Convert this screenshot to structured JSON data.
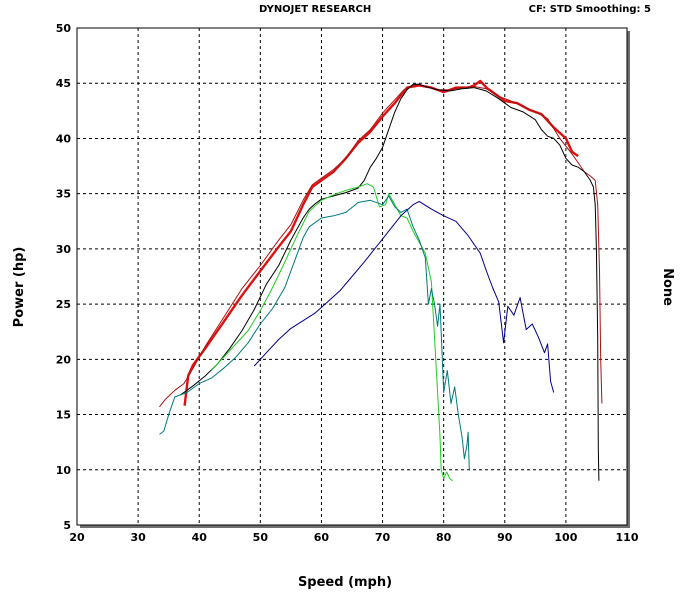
{
  "header": {
    "title": "DYNOJET RESEARCH",
    "right": "CF: STD  Smoothing: 5"
  },
  "colors": {
    "plot_bg": "#ffffff",
    "grid": "#000000",
    "red_run": "#dd1111",
    "dark_red_run": "#aa1111",
    "black_run": "#000000",
    "green_run": "#22cc22",
    "teal_run": "#007a7a",
    "navy_run": "#000088"
  },
  "chart_data": {
    "type": "line",
    "title": "",
    "xlabel": "Speed (mph)",
    "ylabel": "Power (hp)",
    "y2label": "None",
    "xlim": [
      20,
      110
    ],
    "ylim": [
      5,
      50
    ],
    "xticks": [
      20,
      30,
      40,
      50,
      60,
      70,
      80,
      90,
      100,
      110
    ],
    "yticks": [
      5,
      10,
      15,
      20,
      25,
      30,
      35,
      40,
      45,
      50
    ],
    "grid": true,
    "series": [
      {
        "color": "#dd1111",
        "width": 2.4,
        "points": [
          [
            37.6,
            15.8
          ],
          [
            38.2,
            18.5
          ],
          [
            39,
            19.5
          ],
          [
            41,
            21
          ],
          [
            44,
            23.4
          ],
          [
            47,
            25.8
          ],
          [
            50,
            28
          ],
          [
            53,
            30.2
          ],
          [
            55,
            31.6
          ],
          [
            57,
            34
          ],
          [
            58.5,
            35.6
          ],
          [
            60,
            36.2
          ],
          [
            62,
            37
          ],
          [
            64,
            38.2
          ],
          [
            66,
            39.6
          ],
          [
            68,
            40.6
          ],
          [
            70,
            42
          ],
          [
            72,
            43.2
          ],
          [
            74,
            44.6
          ],
          [
            76,
            44.8
          ],
          [
            78,
            44.6
          ],
          [
            80,
            44.2
          ],
          [
            82,
            44.6
          ],
          [
            84,
            44.6
          ],
          [
            85,
            44.8
          ],
          [
            86,
            45.2
          ],
          [
            87,
            44.6
          ],
          [
            88,
            44.2
          ],
          [
            90,
            43.4
          ],
          [
            92,
            43.2
          ],
          [
            94,
            42.6
          ],
          [
            96,
            42.2
          ],
          [
            98,
            41
          ],
          [
            100,
            40
          ],
          [
            101,
            38.8
          ],
          [
            102,
            38.4
          ]
        ]
      },
      {
        "color": "#aa1111",
        "width": 1,
        "points": [
          [
            33.5,
            15.7
          ],
          [
            34.5,
            16.4
          ],
          [
            36,
            17.2
          ],
          [
            37.5,
            17.8
          ],
          [
            39,
            19.2
          ],
          [
            41,
            21.2
          ],
          [
            44,
            23.8
          ],
          [
            47,
            26.4
          ],
          [
            50,
            28.5
          ],
          [
            53,
            30.8
          ],
          [
            55,
            32.2
          ],
          [
            57,
            34.4
          ],
          [
            58.5,
            35.8
          ],
          [
            60,
            36.4
          ],
          [
            62,
            37.2
          ],
          [
            64,
            38.2
          ],
          [
            66,
            39.8
          ],
          [
            68,
            40.8
          ],
          [
            70,
            42.3
          ],
          [
            72,
            43.5
          ],
          [
            73.5,
            44.4
          ],
          [
            75,
            44.8
          ],
          [
            76,
            44.9
          ],
          [
            77,
            44.7
          ],
          [
            79,
            44.4
          ],
          [
            81,
            44.4
          ],
          [
            83,
            44.6
          ],
          [
            85,
            44.7
          ],
          [
            87,
            44.5
          ],
          [
            89,
            43.8
          ],
          [
            91,
            43.4
          ],
          [
            93,
            42.9
          ],
          [
            95,
            42.4
          ],
          [
            97,
            41.8
          ],
          [
            99,
            40
          ],
          [
            101,
            38.6
          ],
          [
            103,
            37
          ],
          [
            104,
            36.6
          ],
          [
            104.8,
            36.2
          ],
          [
            105.2,
            34
          ],
          [
            105.5,
            28
          ],
          [
            105.7,
            20
          ],
          [
            105.9,
            16
          ]
        ]
      },
      {
        "color": "#000000",
        "width": 1,
        "points": [
          [
            37,
            16.8
          ],
          [
            39,
            17.6
          ],
          [
            41,
            18.5
          ],
          [
            43,
            19.6
          ],
          [
            45,
            21
          ],
          [
            47,
            22.6
          ],
          [
            49,
            24.5
          ],
          [
            51,
            26.8
          ],
          [
            53,
            28.5
          ],
          [
            55,
            30.8
          ],
          [
            57,
            32.8
          ],
          [
            58,
            33.6
          ],
          [
            59,
            34.1
          ],
          [
            60,
            34.5
          ],
          [
            62,
            34.8
          ],
          [
            64,
            35.1
          ],
          [
            66,
            35.5
          ],
          [
            67,
            36.2
          ],
          [
            68,
            37.4
          ],
          [
            69,
            38.2
          ],
          [
            70,
            39.2
          ],
          [
            71,
            40.8
          ],
          [
            72,
            42.4
          ],
          [
            73,
            43.6
          ],
          [
            74,
            44.4
          ],
          [
            75,
            44.9
          ],
          [
            76,
            44.9
          ],
          [
            77,
            44.7
          ],
          [
            79,
            44.4
          ],
          [
            81,
            44.3
          ],
          [
            83,
            44.5
          ],
          [
            85,
            44.6
          ],
          [
            87,
            44.3
          ],
          [
            89,
            43.6
          ],
          [
            91,
            42.8
          ],
          [
            93,
            42.4
          ],
          [
            95,
            41.7
          ],
          [
            96,
            40.8
          ],
          [
            97,
            40.2
          ],
          [
            98,
            40
          ],
          [
            99,
            39.4
          ],
          [
            100,
            38.2
          ],
          [
            101,
            37.6
          ],
          [
            102,
            37.4
          ],
          [
            103,
            37
          ],
          [
            104,
            36.2
          ],
          [
            104.5,
            35.6
          ],
          [
            104.8,
            34
          ],
          [
            105,
            30
          ],
          [
            105.2,
            22
          ],
          [
            105.3,
            12
          ],
          [
            105.4,
            9
          ]
        ]
      },
      {
        "color": "#22cc22",
        "width": 1,
        "points": [
          [
            42,
            19
          ],
          [
            44,
            20.2
          ],
          [
            46,
            21.4
          ],
          [
            48,
            22.6
          ],
          [
            50,
            24.4
          ],
          [
            52,
            26.5
          ],
          [
            54,
            28.8
          ],
          [
            56,
            31.2
          ],
          [
            58,
            33.4
          ],
          [
            60,
            34.4
          ],
          [
            62,
            34.9
          ],
          [
            64,
            35.3
          ],
          [
            66,
            35.6
          ],
          [
            67.5,
            35.9
          ],
          [
            68.5,
            35.6
          ],
          [
            69.5,
            33.8
          ],
          [
            70.5,
            34
          ],
          [
            71,
            35
          ],
          [
            72,
            34
          ],
          [
            73,
            33
          ],
          [
            74,
            32.8
          ],
          [
            75,
            31.6
          ],
          [
            76,
            30.6
          ],
          [
            77,
            29.6
          ],
          [
            78,
            27
          ],
          [
            78.5,
            22
          ],
          [
            79,
            17
          ],
          [
            79.4,
            13
          ],
          [
            79.6,
            10
          ],
          [
            80,
            9.2
          ],
          [
            80.5,
            9.8
          ],
          [
            81,
            9.2
          ],
          [
            81.5,
            9
          ]
        ]
      },
      {
        "color": "#007a7a",
        "width": 1,
        "points": [
          [
            33.5,
            13.2
          ],
          [
            34.2,
            13.5
          ],
          [
            35,
            15
          ],
          [
            36,
            16.6
          ],
          [
            38,
            17
          ],
          [
            40,
            17.8
          ],
          [
            42,
            18.3
          ],
          [
            44,
            19.2
          ],
          [
            46,
            20.2
          ],
          [
            48,
            21.5
          ],
          [
            50,
            23.2
          ],
          [
            52,
            24.6
          ],
          [
            54,
            26.5
          ],
          [
            56,
            29.5
          ],
          [
            57,
            31
          ],
          [
            58,
            32
          ],
          [
            60,
            32.8
          ],
          [
            62,
            33
          ],
          [
            64,
            33.3
          ],
          [
            66,
            34.2
          ],
          [
            68,
            34.4
          ],
          [
            70,
            34
          ],
          [
            71,
            34.8
          ],
          [
            72,
            33.8
          ],
          [
            73,
            33.3
          ],
          [
            74,
            33.6
          ],
          [
            75,
            32
          ],
          [
            76,
            30.8
          ],
          [
            77,
            29.2
          ],
          [
            77.5,
            25
          ],
          [
            78,
            26.4
          ],
          [
            78.5,
            25
          ],
          [
            79,
            23
          ],
          [
            79.4,
            25
          ],
          [
            80,
            17
          ],
          [
            80.6,
            19
          ],
          [
            81.2,
            16
          ],
          [
            81.8,
            17.5
          ],
          [
            82.4,
            15
          ],
          [
            83,
            13
          ],
          [
            83.4,
            11
          ],
          [
            83.8,
            12.2
          ],
          [
            84,
            13.4
          ],
          [
            84.2,
            10
          ]
        ]
      },
      {
        "color": "#000088",
        "width": 1,
        "points": [
          [
            49,
            19.4
          ],
          [
            51,
            20.6
          ],
          [
            53,
            21.8
          ],
          [
            55,
            22.8
          ],
          [
            57,
            23.5
          ],
          [
            59,
            24.2
          ],
          [
            61,
            25.2
          ],
          [
            63,
            26.2
          ],
          [
            65,
            27.5
          ],
          [
            67,
            28.8
          ],
          [
            69,
            30.2
          ],
          [
            71,
            31.6
          ],
          [
            73,
            33
          ],
          [
            75,
            34
          ],
          [
            76,
            34.3
          ],
          [
            78,
            33.6
          ],
          [
            80,
            33
          ],
          [
            82,
            32.5
          ],
          [
            84,
            31.2
          ],
          [
            86,
            29.6
          ],
          [
            87,
            28
          ],
          [
            88,
            26.5
          ],
          [
            89,
            25.2
          ],
          [
            89.8,
            21.5
          ],
          [
            90.5,
            24.8
          ],
          [
            91.5,
            24
          ],
          [
            92.5,
            25.6
          ],
          [
            93.5,
            22.7
          ],
          [
            94.5,
            23.2
          ],
          [
            95.5,
            22
          ],
          [
            96.5,
            20.6
          ],
          [
            97,
            21.4
          ],
          [
            97.5,
            18
          ],
          [
            98,
            17
          ]
        ]
      }
    ]
  }
}
